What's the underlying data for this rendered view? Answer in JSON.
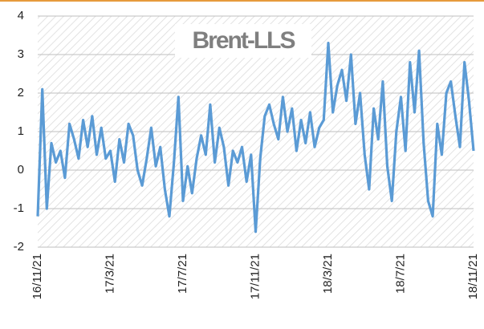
{
  "chart_data": {
    "type": "line",
    "title": "Brent-LLS",
    "categories": [
      "16/11/21",
      null,
      null,
      null,
      null,
      null,
      null,
      null,
      null,
      null,
      null,
      null,
      null,
      null,
      null,
      null,
      "17/3/21",
      null,
      null,
      null,
      null,
      null,
      null,
      null,
      null,
      null,
      null,
      null,
      null,
      null,
      null,
      null,
      "17/7/21",
      null,
      null,
      null,
      null,
      null,
      null,
      null,
      null,
      null,
      null,
      null,
      null,
      null,
      null,
      null,
      "17/11/21",
      null,
      null,
      null,
      null,
      null,
      null,
      null,
      null,
      null,
      null,
      null,
      null,
      null,
      null,
      null,
      "18/3/21",
      null,
      null,
      null,
      null,
      null,
      null,
      null,
      null,
      null,
      null,
      null,
      null,
      null,
      null,
      null,
      "18/7/21",
      null,
      null,
      null,
      null,
      null,
      null,
      null,
      null,
      null,
      null,
      null,
      null,
      null,
      null,
      null,
      "18/11/21"
    ],
    "series": [
      {
        "color": "#5b9bd5",
        "values": [
          -1.2,
          2.1,
          -1.0,
          0.7,
          0.2,
          0.5,
          -0.2,
          1.2,
          0.8,
          0.3,
          1.3,
          0.6,
          1.4,
          0.4,
          1.1,
          0.3,
          0.5,
          -0.3,
          0.8,
          0.2,
          1.2,
          0.9,
          0.0,
          -0.4,
          0.3,
          1.1,
          0.1,
          0.6,
          -0.5,
          -1.2,
          0.2,
          1.9,
          -0.8,
          0.1,
          -0.6,
          0.3,
          0.9,
          0.4,
          1.7,
          0.2,
          1.1,
          0.6,
          -0.4,
          0.5,
          0.2,
          0.6,
          -0.3,
          0.4,
          -1.6,
          0.3,
          1.4,
          1.7,
          1.2,
          0.8,
          1.9,
          1.0,
          1.6,
          0.5,
          1.3,
          0.7,
          1.5,
          0.6,
          1.1,
          1.3,
          3.3,
          1.5,
          2.2,
          2.6,
          1.8,
          3.0,
          1.2,
          2.0,
          0.4,
          -0.5,
          1.6,
          0.8,
          2.3,
          0.1,
          -0.8,
          1.0,
          1.9,
          0.5,
          2.8,
          1.5,
          3.1,
          0.7,
          -0.8,
          -1.2,
          1.2,
          0.4,
          2.0,
          2.3,
          1.4,
          0.6,
          2.8,
          1.8,
          0.5
        ]
      }
    ],
    "ylim": [
      -2,
      4
    ],
    "yticks": [
      -2,
      -1,
      0,
      1,
      2,
      3,
      4
    ],
    "grid": true
  }
}
